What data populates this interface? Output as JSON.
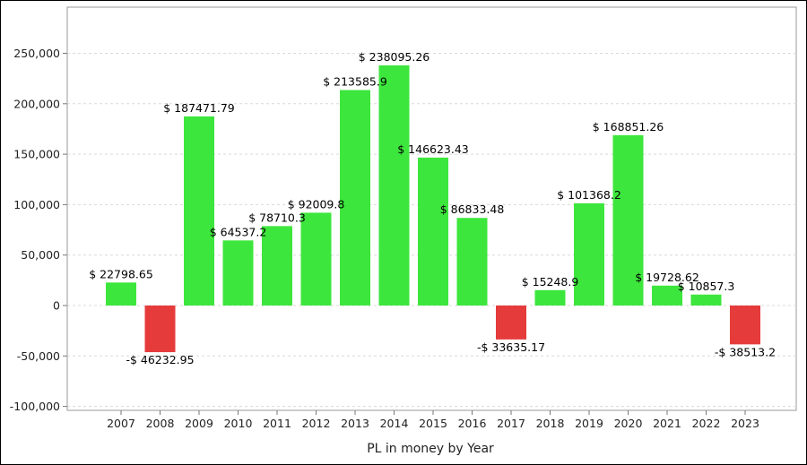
{
  "chart_data": {
    "type": "bar",
    "title": "",
    "xlabel": "PL in money by Year",
    "ylabel": "",
    "ylim": [
      -100000,
      280000
    ],
    "yticks": [
      -100000,
      -50000,
      0,
      50000,
      100000,
      150000,
      200000,
      250000
    ],
    "ytick_labels": [
      "-100,000",
      "-50,000",
      "0",
      "50,000",
      "100,000",
      "150,000",
      "200,000",
      "250,000"
    ],
    "categories": [
      "2007",
      "2008",
      "2009",
      "2010",
      "2011",
      "2012",
      "2013",
      "2014",
      "2015",
      "2016",
      "2017",
      "2018",
      "2019",
      "2020",
      "2021",
      "2022",
      "2023"
    ],
    "values": [
      22798.65,
      -46232.95,
      187471.79,
      64537.2,
      78710.3,
      92009.8,
      213585.9,
      238095.26,
      146623.43,
      86833.48,
      -33635.17,
      15248.9,
      101368.2,
      168851.26,
      19728.62,
      10857.3,
      -38513.2
    ],
    "data_labels": [
      "$ 22798.65",
      "-$ 46232.95",
      "$ 187471.79",
      "$ 64537.2",
      "$ 78710.3",
      "$ 92009.8",
      "$ 213585.9",
      "$ 238095.26",
      "$ 146623.43",
      "$ 86833.48",
      "-$ 33635.17",
      "$ 15248.9",
      "$ 101368.2",
      "$ 168851.26",
      "$ 19728.62",
      "$ 10857.3",
      "-$ 38513.2"
    ],
    "colors": {
      "positive": "#3de63d",
      "negative": "#e63b3b"
    },
    "grid": true,
    "legend": "none"
  }
}
